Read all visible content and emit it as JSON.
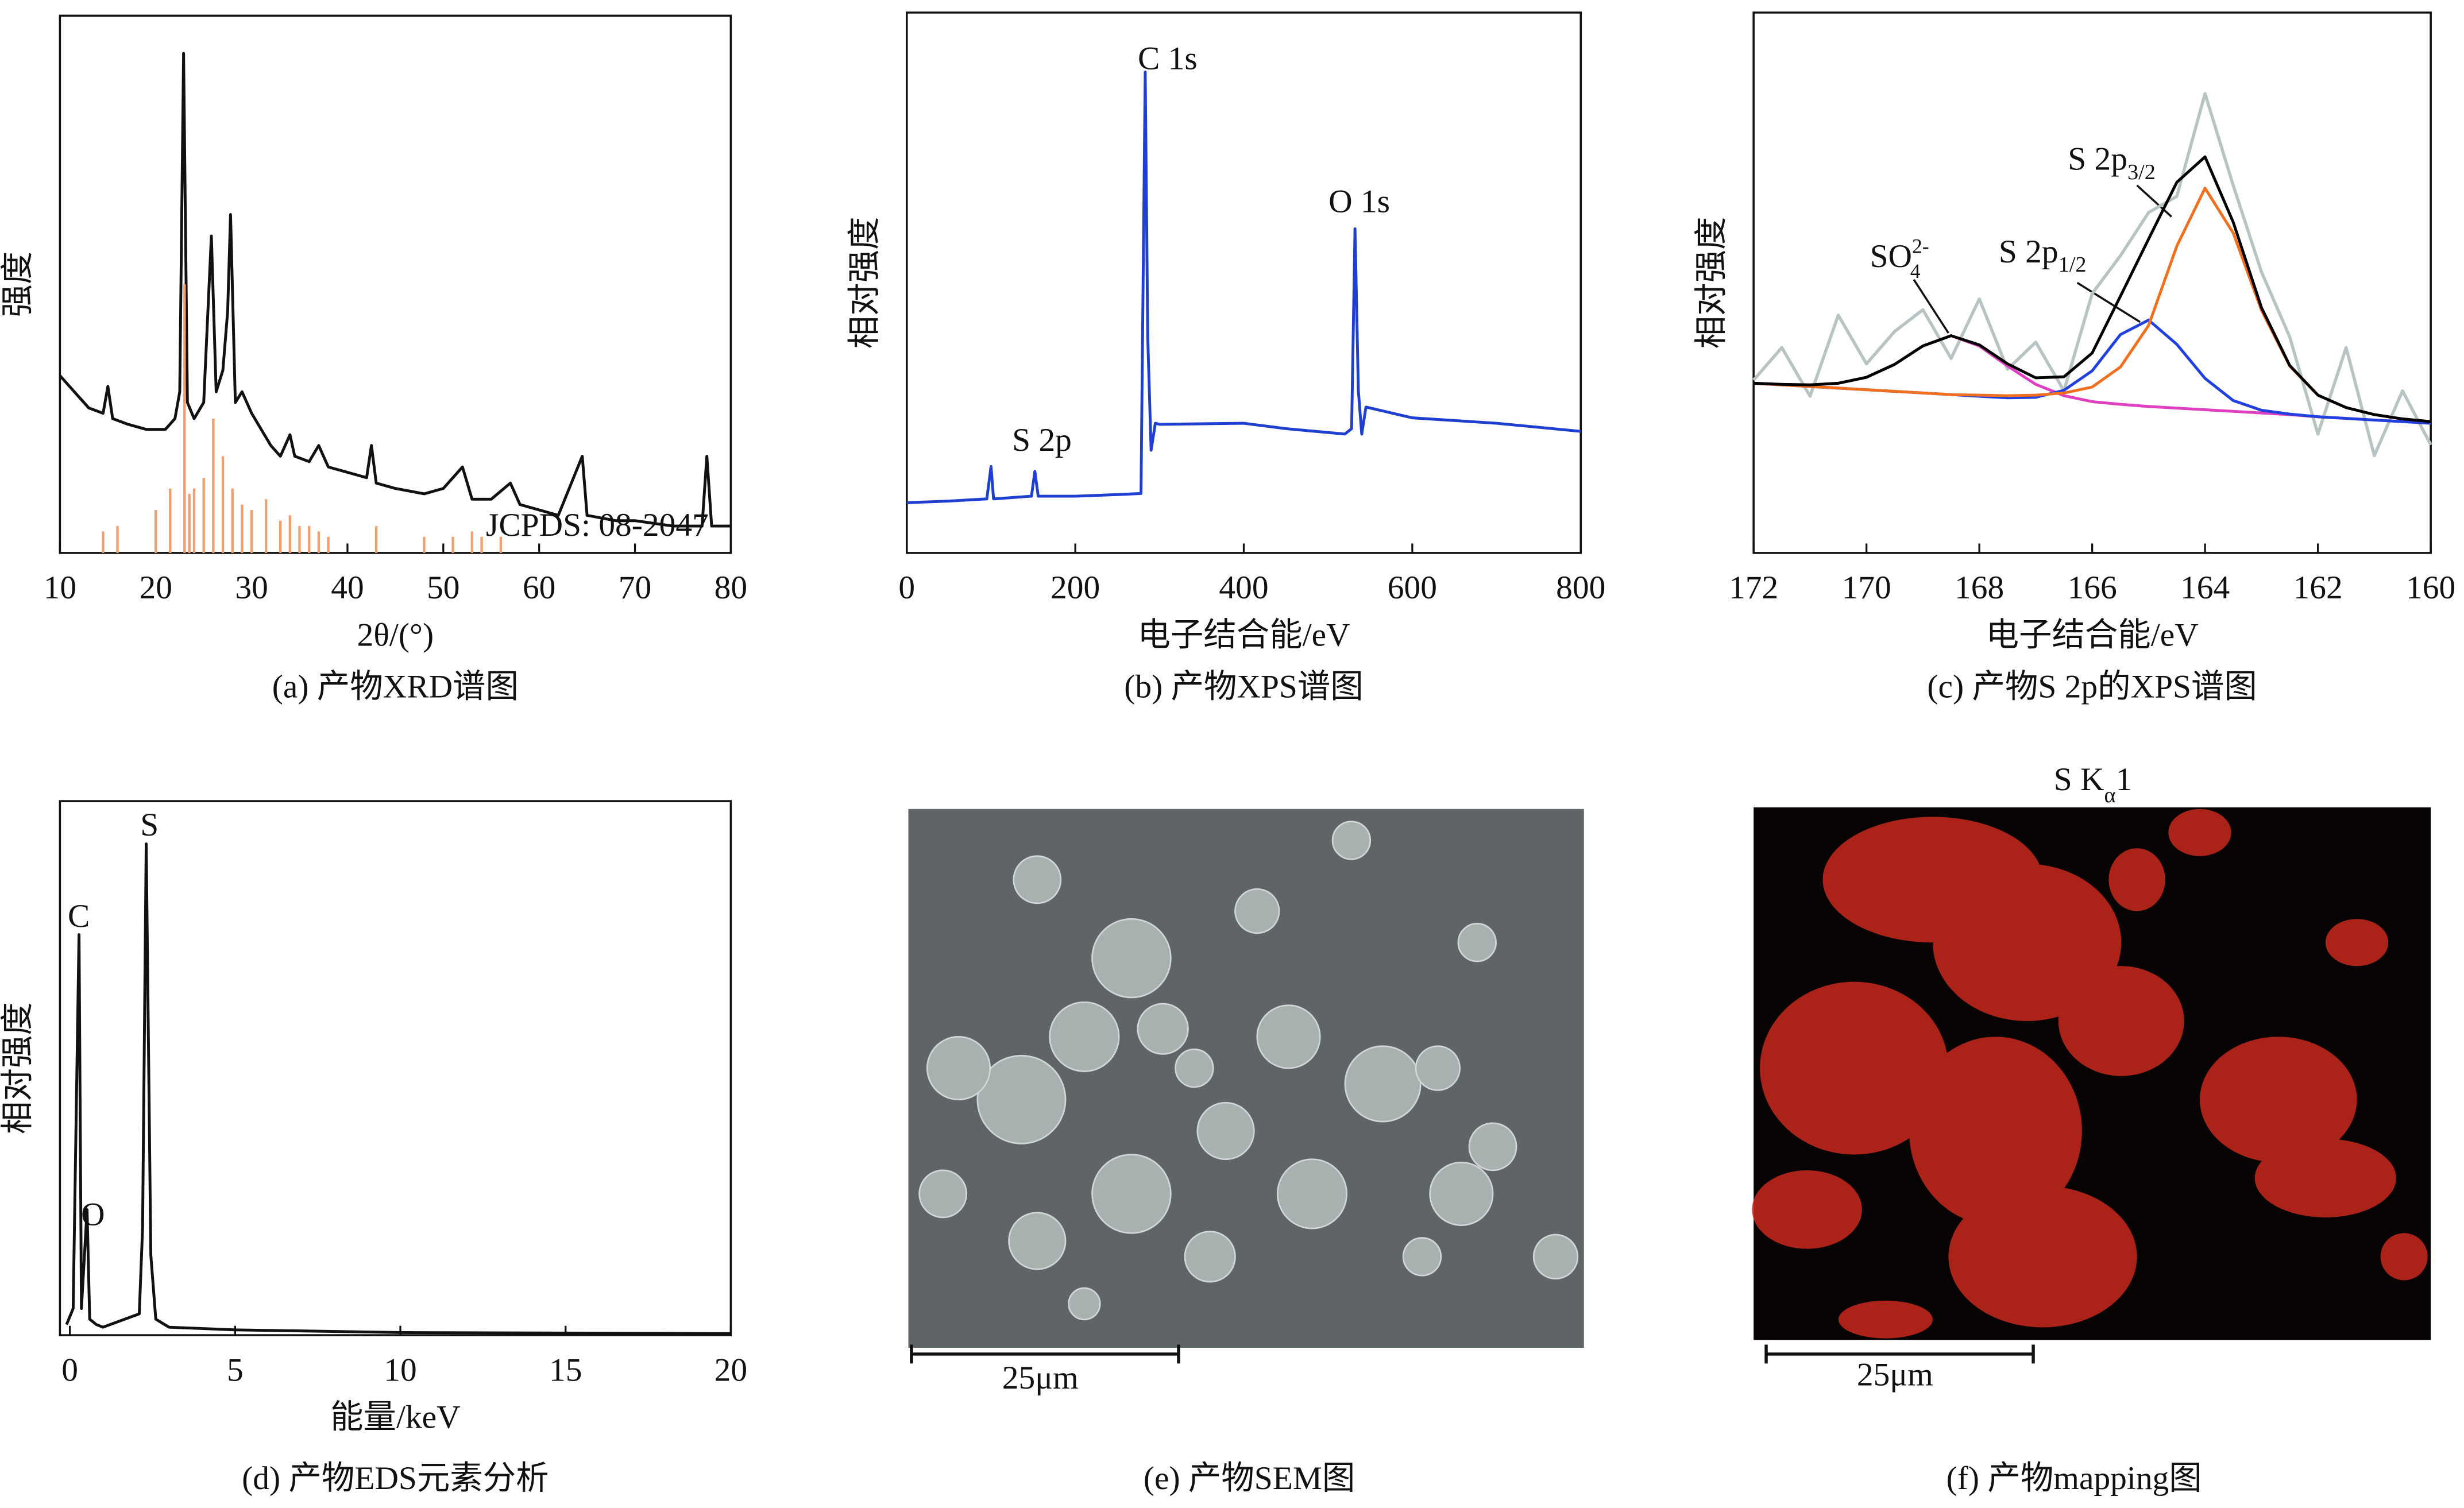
{
  "chart_data": [
    {
      "type": "line",
      "xlabel": "2θ/(°)",
      "ylabel": "强度",
      "caption": "(a) 产物XRD谱图",
      "xlim": [
        10,
        80
      ],
      "xticks": [
        10,
        20,
        30,
        40,
        50,
        60,
        70,
        80
      ],
      "ylim": [
        0,
        100
      ],
      "annotations": [
        {
          "text": "JCPDS: 08-2047"
        }
      ],
      "series": [
        {
          "style": "line",
          "color": "#111111",
          "x": [
            10,
            11,
            12,
            13,
            14.5,
            15,
            15.5,
            17,
            19,
            21,
            22,
            22.5,
            22.9,
            23.3,
            24,
            25,
            25.8,
            26.3,
            27,
            27.5,
            27.8,
            28.3,
            29,
            30,
            31,
            32,
            33,
            34,
            34.5,
            36,
            37,
            38,
            40,
            42,
            42.5,
            43,
            45,
            48,
            50,
            52,
            53,
            55,
            57,
            58,
            60,
            62,
            64.5,
            65,
            68,
            70,
            74,
            77,
            77.5,
            78,
            80
          ],
          "values": [
            33,
            31,
            29,
            27,
            26,
            31,
            25,
            24,
            23,
            23,
            25,
            30,
            93,
            28,
            25,
            28,
            59,
            30,
            34,
            45,
            63,
            28,
            30,
            26,
            23,
            20,
            18,
            22,
            18,
            17,
            20,
            16,
            15,
            14,
            20,
            13,
            12,
            11,
            12,
            16,
            10,
            10,
            13,
            9,
            8,
            7,
            18,
            7,
            6,
            6,
            5,
            5,
            18,
            5,
            5
          ]
        },
        {
          "style": "stick",
          "color": "#f0a070",
          "x": [
            14.5,
            16,
            20,
            21.5,
            23,
            23.5,
            24,
            25,
            26,
            27,
            28,
            29,
            30,
            31.5,
            33,
            34,
            35,
            36,
            37,
            38,
            43,
            48,
            51,
            53,
            54,
            56
          ],
          "values": [
            4,
            5,
            8,
            12,
            50,
            11,
            12,
            14,
            25,
            18,
            12,
            9,
            8,
            10,
            6,
            7,
            5,
            5,
            4,
            3,
            5,
            3,
            3,
            4,
            3,
            3
          ]
        }
      ]
    },
    {
      "type": "line",
      "xlabel": "电子结合能/eV",
      "ylabel": "相对强度",
      "caption": "(b) 产物XPS谱图",
      "xlim": [
        0,
        800
      ],
      "xticks": [
        0,
        200,
        400,
        600,
        800
      ],
      "ylim": [
        0,
        100
      ],
      "annotations": [
        {
          "text": "C 1s"
        },
        {
          "text": "O 1s"
        },
        {
          "text": "S 2p"
        }
      ],
      "series": [
        {
          "style": "line",
          "color": "#1f3fd0",
          "x": [
            0,
            50,
            95,
            100,
            103,
            148,
            152,
            156,
            200,
            250,
            278,
            283,
            286,
            290,
            295,
            300,
            400,
            450,
            520,
            528,
            532,
            536,
            540,
            545,
            600,
            700,
            800
          ],
          "values": [
            9.3,
            9.6,
            10,
            16,
            10,
            10.5,
            15.1,
            10.5,
            10.5,
            10.8,
            11,
            89,
            40,
            19,
            24,
            23.8,
            24,
            23,
            22,
            23,
            60,
            30,
            22,
            27,
            25,
            24,
            22.5
          ]
        }
      ]
    },
    {
      "type": "line",
      "xlabel": "电子结合能/eV",
      "ylabel": "相对强度",
      "caption": "(c) 产物S 2p的XPS谱图",
      "xlim": [
        172,
        160
      ],
      "xticks": [
        172,
        170,
        168,
        166,
        164,
        162,
        160
      ],
      "ylim": [
        0,
        100
      ],
      "annotations": [
        {
          "text": "SO",
          "sub": "4",
          "sup": "2-"
        },
        {
          "text": "S 2p",
          "sub": "1/2"
        },
        {
          "text": "S 2p",
          "sub": "3/2"
        }
      ],
      "x": [
        172,
        171.5,
        171,
        170.5,
        170,
        169.5,
        169,
        168.5,
        168,
        167.5,
        167,
        166.5,
        166,
        165.5,
        165,
        164.5,
        164,
        163.5,
        163,
        162.5,
        162,
        161.5,
        161,
        160.5,
        160
      ],
      "series": [
        {
          "style": "line",
          "color": "#b8c4c4",
          "values": [
            32,
            38,
            29,
            44,
            35,
            41,
            45,
            36,
            47,
            34,
            39,
            30,
            48,
            55,
            63,
            66,
            85,
            68,
            52,
            40,
            22,
            38,
            18,
            30,
            20
          ]
        },
        {
          "style": "line",
          "color": "#e040c0",
          "values": [
            31.4,
            31.2,
            31.1,
            31.4,
            32.5,
            34.9,
            38.3,
            40.2,
            38.3,
            34.6,
            31.2,
            29.1,
            28.0,
            27.5,
            27.1,
            26.8,
            26.5,
            26.2,
            25.9,
            25.6,
            25.2,
            24.9,
            24.6,
            24.3,
            24.0
          ]
        },
        {
          "style": "line",
          "color": "#2040e0",
          "values": [
            31.4,
            31.1,
            30.8,
            30.5,
            30.2,
            29.9,
            29.6,
            29.3,
            29.0,
            28.7,
            28.8,
            30.1,
            33.7,
            40.4,
            43.1,
            38.6,
            32.3,
            28.2,
            26.4,
            25.7,
            25.2,
            24.9,
            24.6,
            24.3,
            24.0
          ]
        },
        {
          "style": "line",
          "color": "#f07020",
          "values": [
            31.4,
            31.1,
            30.8,
            30.5,
            30.2,
            29.9,
            29.6,
            29.3,
            29.2,
            29.1,
            29.2,
            29.6,
            30.7,
            34.4,
            42.1,
            56.8,
            67.5,
            59.2,
            44.9,
            34.6,
            29.2,
            26.9,
            25.6,
            24.8,
            24.3
          ]
        },
        {
          "style": "line",
          "color": "#000000",
          "values": [
            31.4,
            31.2,
            31.1,
            31.4,
            32.5,
            34.9,
            38.3,
            40.2,
            38.5,
            35.0,
            32.4,
            32.6,
            37.0,
            47.5,
            58.1,
            68.6,
            73.3,
            61.2,
            45.4,
            34.7,
            29.2,
            26.9,
            25.6,
            24.8,
            24.3
          ]
        }
      ]
    },
    {
      "type": "line",
      "xlabel": "能量/keV",
      "ylabel": "相对强度",
      "caption": "(d) 产物EDS元素分析",
      "xlim": [
        -0.3,
        20
      ],
      "xticks": [
        0,
        5,
        10,
        15,
        20
      ],
      "ylim": [
        0,
        100
      ],
      "annotations": [
        {
          "text": "C"
        },
        {
          "text": "O"
        },
        {
          "text": "S"
        }
      ],
      "series": [
        {
          "style": "line",
          "color": "#111111",
          "x": [
            -0.1,
            0.1,
            0.277,
            0.35,
            0.52,
            0.6,
            0.8,
            1,
            2.1,
            2.2,
            2.31,
            2.45,
            2.6,
            3,
            5,
            10,
            20
          ],
          "values": [
            2,
            5,
            75,
            5,
            23.5,
            3,
            2,
            1.5,
            4,
            20,
            92,
            15,
            3,
            1.5,
            1,
            0.5,
            0.3
          ]
        }
      ]
    }
  ],
  "images": [
    {
      "caption": "(e) 产物SEM图",
      "scale_bar": "25μm"
    },
    {
      "title": {
        "text": "S K",
        "sub": "α",
        "tail": "1"
      },
      "caption": "(f) 产物mapping图",
      "scale_bar": "25μm"
    }
  ]
}
